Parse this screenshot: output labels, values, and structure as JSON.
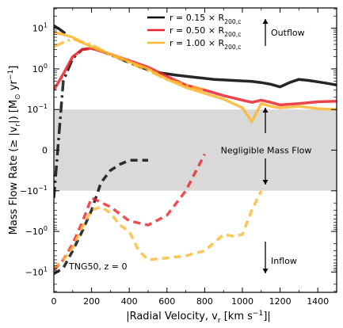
{
  "chart_data": {
    "type": "line",
    "xlabel": "|Radial Velocity, v$_r$ [km s$^{-1}$]|",
    "ylabel": "Mass Flow Rate (≥ |v$_r$|) [M$_\\odot$ yr$^{-1}$]",
    "xlim": [
      0,
      1500
    ],
    "yscale": "symlog",
    "ylim_display": [
      "-10^1.5",
      "10^1.5"
    ],
    "x_ticks": [
      "0",
      "200",
      "400",
      "600",
      "800",
      "1000",
      "1200",
      "1400"
    ],
    "y_ticks": [
      "10$^{1}$",
      "10$^{0}$",
      "10$^{-1}$",
      "0",
      "-10$^{-1}$",
      "-10$^{0}$",
      "-10$^{1}$"
    ],
    "grid": false,
    "legend_placement": "top-center",
    "shaded_band": {
      "label": "Negligible Mass Flow",
      "y_range": [
        -0.1,
        0.1
      ],
      "color": "#d9d9d9"
    },
    "annotations": {
      "outflow": "Outflow",
      "inflow": "Inflow",
      "tng_label": "TNG50, $z = 0$"
    },
    "series": [
      {
        "name": "$r = 0.15 \\times$ R$_{200,c}$",
        "color": "#000000",
        "outflow_solid": {
          "x": [
            560,
            650,
            750,
            850,
            950,
            1050,
            1100,
            1150,
            1200,
            1250,
            1300,
            1350,
            1400,
            1450,
            1500
          ],
          "y": [
            0.8,
            0.7,
            0.62,
            0.55,
            0.52,
            0.49,
            0.46,
            0.42,
            0.36,
            0.46,
            0.55,
            0.52,
            0.48,
            0.44,
            0.4
          ]
        },
        "dashdot": {
          "x": [
            0,
            50,
            100,
            150,
            200,
            250,
            300,
            350,
            400,
            450,
            500,
            560
          ],
          "y": [
            -0.15,
            0.5,
            1.8,
            3.0,
            3.2,
            2.8,
            2.2,
            1.8,
            1.4,
            1.15,
            0.95,
            0.8
          ]
        },
        "top_solid": {
          "x": [
            0,
            30,
            60
          ],
          "y": [
            11.5,
            9.5,
            7.5
          ]
        },
        "inflow_dashed": {
          "x": [
            0,
            50,
            100,
            150,
            200,
            250,
            300,
            350,
            400,
            450,
            500
          ],
          "y": [
            -11.0,
            -8.0,
            -3.0,
            -1.0,
            -0.3,
            -0.08,
            -0.05,
            -0.035,
            -0.025,
            -0.025,
            -0.025
          ]
        }
      },
      {
        "name": "$r = 0.50 \\times$ R$_{200,c}$",
        "color": "#e8232b",
        "outflow_solid": {
          "x": [
            0,
            50,
            100,
            150,
            200,
            300,
            400,
            500,
            600,
            700,
            800,
            900,
            1000,
            1050,
            1100,
            1150,
            1200,
            1300,
            1400,
            1500
          ],
          "y": [
            0.3,
            0.75,
            2.0,
            3.0,
            3.2,
            2.3,
            1.6,
            1.1,
            0.65,
            0.4,
            0.3,
            0.22,
            0.17,
            0.15,
            0.17,
            0.15,
            0.13,
            0.14,
            0.155,
            0.16
          ]
        },
        "inflow_dashed": {
          "x": [
            0,
            50,
            100,
            150,
            200,
            300,
            400,
            500,
            600,
            700,
            800
          ],
          "y": [
            -9.0,
            -5.0,
            -2.0,
            -0.6,
            -0.15,
            -0.25,
            -0.55,
            -0.7,
            -0.4,
            -0.1,
            -0.01
          ]
        }
      },
      {
        "name": "$r = 1.00 \\times$ R$_{200,c}$",
        "color": "#fcb730",
        "outflow_solid": {
          "x": [
            0,
            50,
            100,
            150,
            200,
            250,
            300,
            350,
            400,
            500,
            600,
            700,
            800,
            900,
            1000,
            1050,
            1100,
            1150,
            1200,
            1300,
            1400,
            1500
          ],
          "y": [
            8.0,
            7.0,
            6.0,
            4.5,
            3.5,
            2.8,
            2.3,
            1.9,
            1.5,
            1.0,
            0.55,
            0.35,
            0.25,
            0.18,
            0.11,
            0.07,
            0.14,
            0.12,
            0.11,
            0.12,
            0.105,
            0.1
          ]
        },
        "dashdot": {
          "x": [
            0,
            50,
            100,
            150,
            200,
            300,
            400,
            500,
            600,
            700,
            800
          ],
          "y": [
            3.5,
            4.5,
            5.5,
            4.5,
            4.0,
            2.2,
            1.4,
            0.9,
            0.55,
            0.4,
            0.3
          ]
        },
        "inflow_dashed": {
          "x": [
            0,
            50,
            100,
            150,
            200,
            250,
            300,
            350,
            400,
            450,
            500,
            600,
            700,
            800,
            900,
            950,
            1000,
            1050,
            1100
          ],
          "y": [
            -8.0,
            -5.0,
            -2.5,
            -0.8,
            -0.3,
            -0.25,
            -0.35,
            -0.7,
            -1.0,
            -3.0,
            -5.0,
            -4.5,
            -4.0,
            -3.0,
            -1.2,
            -1.3,
            -1.2,
            -0.3,
            -0.1
          ]
        }
      }
    ]
  }
}
